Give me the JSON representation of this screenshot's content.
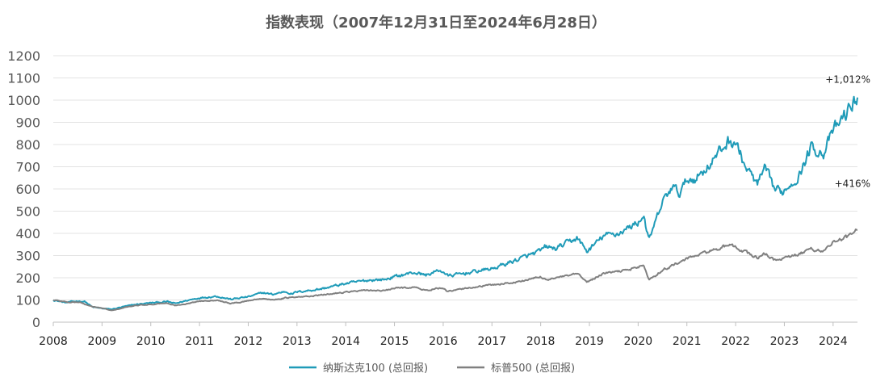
{
  "chart_data": {
    "type": "line",
    "title": "指数表现（2007年12月31日至2024年6月28日）",
    "xlabel": "",
    "ylabel": "",
    "ylim": [
      0,
      1200
    ],
    "yticks": [
      0,
      100,
      200,
      300,
      400,
      500,
      600,
      700,
      800,
      900,
      1000,
      1100,
      1200
    ],
    "xlim": [
      2008.0,
      2024.5
    ],
    "xticks": [
      "2008",
      "2009",
      "2010",
      "2011",
      "2012",
      "2013",
      "2014",
      "2015",
      "2016",
      "2017",
      "2018",
      "2019",
      "2020",
      "2021",
      "2022",
      "2023",
      "2024"
    ],
    "grid": true,
    "legend_position": "bottom",
    "series": [
      {
        "name": "纳斯达克100 (总回报)",
        "color": "#1f9bb8",
        "end_label": "+1,012%",
        "points": [
          [
            2008.0,
            100
          ],
          [
            2008.25,
            88
          ],
          [
            2008.5,
            95
          ],
          [
            2008.65,
            93
          ],
          [
            2008.8,
            68
          ],
          [
            2009.0,
            62
          ],
          [
            2009.2,
            58
          ],
          [
            2009.45,
            70
          ],
          [
            2009.7,
            80
          ],
          [
            2010.0,
            87
          ],
          [
            2010.35,
            92
          ],
          [
            2010.5,
            84
          ],
          [
            2010.75,
            98
          ],
          [
            2011.0,
            110
          ],
          [
            2011.35,
            117
          ],
          [
            2011.65,
            103
          ],
          [
            2011.85,
            110
          ],
          [
            2012.0,
            114
          ],
          [
            2012.3,
            133
          ],
          [
            2012.5,
            125
          ],
          [
            2012.75,
            138
          ],
          [
            2012.9,
            128
          ],
          [
            2013.0,
            136
          ],
          [
            2013.5,
            150
          ],
          [
            2014.0,
            174
          ],
          [
            2014.5,
            190
          ],
          [
            2014.8,
            192
          ],
          [
            2015.0,
            205
          ],
          [
            2015.4,
            224
          ],
          [
            2015.65,
            212
          ],
          [
            2015.9,
            232
          ],
          [
            2016.0,
            228
          ],
          [
            2016.1,
            208
          ],
          [
            2016.5,
            222
          ],
          [
            2016.9,
            238
          ],
          [
            2017.0,
            240
          ],
          [
            2017.5,
            280
          ],
          [
            2018.0,
            320
          ],
          [
            2018.1,
            340
          ],
          [
            2018.3,
            330
          ],
          [
            2018.75,
            380
          ],
          [
            2018.95,
            318
          ],
          [
            2019.3,
            390
          ],
          [
            2019.6,
            400
          ],
          [
            2020.0,
            450
          ],
          [
            2020.12,
            480
          ],
          [
            2020.22,
            365
          ],
          [
            2020.5,
            540
          ],
          [
            2020.7,
            610
          ],
          [
            2020.85,
            580
          ],
          [
            2021.0,
            640
          ],
          [
            2021.2,
            650
          ],
          [
            2021.5,
            720
          ],
          [
            2021.85,
            815
          ],
          [
            2022.0,
            810
          ],
          [
            2022.2,
            700
          ],
          [
            2022.45,
            620
          ],
          [
            2022.6,
            690
          ],
          [
            2022.8,
            600
          ],
          [
            2022.95,
            585
          ],
          [
            2023.3,
            660
          ],
          [
            2023.55,
            790
          ],
          [
            2023.8,
            760
          ],
          [
            2024.0,
            860
          ],
          [
            2024.3,
            950
          ],
          [
            2024.5,
            1012
          ]
        ]
      },
      {
        "name": "标普500 (总回报)",
        "color": "#808080",
        "end_label": "+416%",
        "points": [
          [
            2008.0,
            100
          ],
          [
            2008.3,
            90
          ],
          [
            2008.55,
            90
          ],
          [
            2008.75,
            72
          ],
          [
            2009.0,
            63
          ],
          [
            2009.2,
            52
          ],
          [
            2009.5,
            68
          ],
          [
            2009.8,
            78
          ],
          [
            2010.0,
            80
          ],
          [
            2010.3,
            86
          ],
          [
            2010.5,
            75
          ],
          [
            2010.8,
            86
          ],
          [
            2011.0,
            95
          ],
          [
            2011.35,
            100
          ],
          [
            2011.65,
            84
          ],
          [
            2011.9,
            92
          ],
          [
            2012.0,
            97
          ],
          [
            2012.3,
            108
          ],
          [
            2012.45,
            100
          ],
          [
            2012.8,
            110
          ],
          [
            2013.0,
            112
          ],
          [
            2013.5,
            122
          ],
          [
            2014.0,
            136
          ],
          [
            2014.5,
            144
          ],
          [
            2014.8,
            141
          ],
          [
            2015.0,
            153
          ],
          [
            2015.4,
            158
          ],
          [
            2015.65,
            142
          ],
          [
            2015.9,
            154
          ],
          [
            2016.0,
            150
          ],
          [
            2016.1,
            137
          ],
          [
            2016.5,
            154
          ],
          [
            2016.9,
            165
          ],
          [
            2017.0,
            168
          ],
          [
            2017.5,
            180
          ],
          [
            2018.0,
            204
          ],
          [
            2018.1,
            192
          ],
          [
            2018.5,
            206
          ],
          [
            2018.75,
            218
          ],
          [
            2018.95,
            180
          ],
          [
            2019.3,
            220
          ],
          [
            2019.6,
            228
          ],
          [
            2020.0,
            248
          ],
          [
            2020.12,
            256
          ],
          [
            2020.22,
            188
          ],
          [
            2020.5,
            235
          ],
          [
            2020.85,
            270
          ],
          [
            2021.0,
            286
          ],
          [
            2021.4,
            315
          ],
          [
            2021.85,
            345
          ],
          [
            2022.0,
            338
          ],
          [
            2022.25,
            310
          ],
          [
            2022.45,
            290
          ],
          [
            2022.6,
            308
          ],
          [
            2022.8,
            280
          ],
          [
            2022.95,
            285
          ],
          [
            2023.3,
            305
          ],
          [
            2023.55,
            330
          ],
          [
            2023.8,
            320
          ],
          [
            2024.0,
            360
          ],
          [
            2024.3,
            385
          ],
          [
            2024.5,
            416
          ]
        ]
      }
    ]
  }
}
